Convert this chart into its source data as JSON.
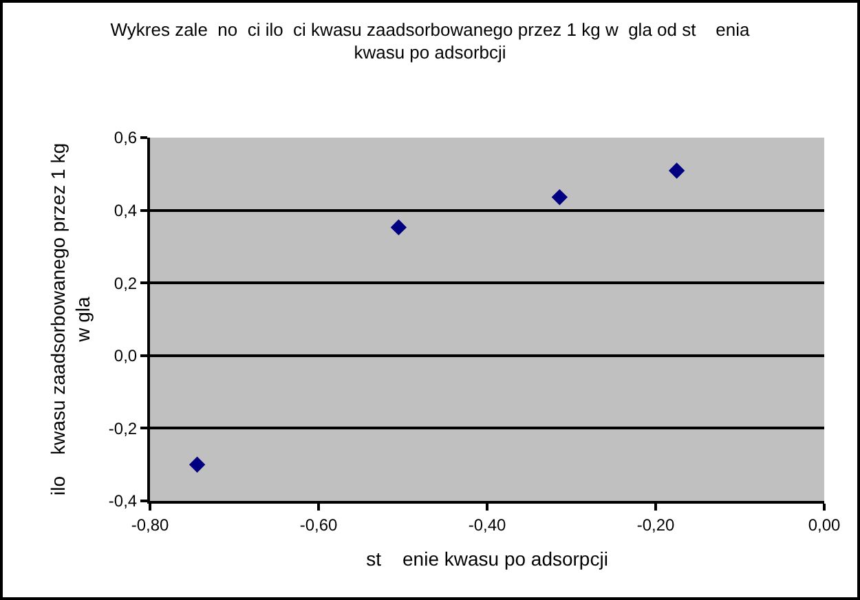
{
  "chart_data": {
    "type": "scatter",
    "title": "Wykres zale  no  ci ilo  ci kwasu zaadsorbowanego przez 1 kg w  gla od st    enia\nkwasu po adsorbcji",
    "xlabel": "st    enie kwasu po adsorpcji",
    "ylabel": "ilo    kwasu zaadsorbowanego przez 1 kg\nw gla",
    "x": [
      -0.744,
      -0.505,
      -0.314,
      -0.175
    ],
    "series": [
      {
        "color": "#000080",
        "values": [
          -0.3,
          0.353,
          0.436,
          0.509
        ]
      }
    ],
    "xlim": [
      -0.8,
      0
    ],
    "xticks": [
      {
        "value": -0.8,
        "label": "-0,80"
      },
      {
        "value": -0.6,
        "label": "-0,60"
      },
      {
        "value": -0.4,
        "label": "-0,40"
      },
      {
        "value": -0.2,
        "label": "-0,20"
      },
      {
        "value": 0,
        "label": "0,00"
      }
    ],
    "ylim": [
      -0.4,
      0.6
    ],
    "yticks": [
      {
        "value": -0.4,
        "label": "-0,4"
      },
      {
        "value": -0.2,
        "label": "-0,2"
      },
      {
        "value": 0,
        "label": "0,0"
      },
      {
        "value": 0.2,
        "label": "0,2"
      },
      {
        "value": 0.4,
        "label": "0,4"
      },
      {
        "value": 0.6,
        "label": "0,6"
      }
    ],
    "grid": "y",
    "marker": "diamond"
  }
}
